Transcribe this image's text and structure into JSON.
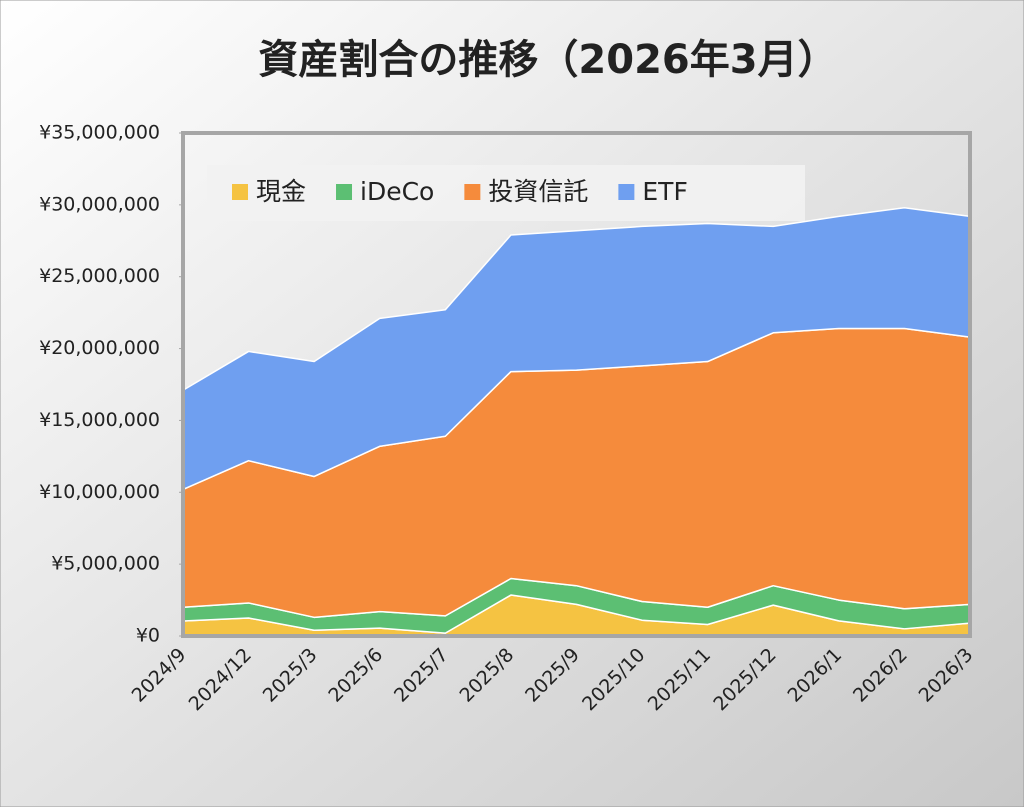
{
  "chart_data": {
    "type": "stacked-area",
    "title": "資産割合の推移（2026年3月）",
    "categories": [
      "2024/9",
      "2024/12",
      "2025/3",
      "2025/6",
      "2025/7",
      "2025/8",
      "2025/9",
      "2025/10",
      "2025/11",
      "2025/12",
      "2026/1",
      "2026/2",
      "2026/3"
    ],
    "series": [
      {
        "name": "現金",
        "color": "#f5c342",
        "values": [
          1040000,
          1250000,
          400000,
          550000,
          200000,
          2850000,
          2200000,
          1100000,
          800000,
          2150000,
          1050000,
          500000,
          900000
        ]
      },
      {
        "name": "iDeCo",
        "color": "#5cbf73",
        "values": [
          960000,
          1050000,
          900000,
          1150000,
          1200000,
          1150000,
          1300000,
          1300000,
          1200000,
          1350000,
          1450000,
          1400000,
          1300000
        ]
      },
      {
        "name": "投資信託",
        "color": "#f58b3c",
        "values": [
          8200000,
          9900000,
          9800000,
          11500000,
          12500000,
          14400000,
          15000000,
          16400000,
          17100000,
          17600000,
          18900000,
          19500000,
          18600000
        ]
      },
      {
        "name": "ETF",
        "color": "#6f9ff0",
        "values": [
          6900000,
          7600000,
          8000000,
          8900000,
          8800000,
          9500000,
          9700000,
          9700000,
          9600000,
          7400000,
          7800000,
          8400000,
          8400000
        ]
      }
    ],
    "ylim": [
      0,
      35000000
    ],
    "yticks": [
      {
        "value": 0,
        "label": "¥0"
      },
      {
        "value": 5000000,
        "label": "¥5,000,000"
      },
      {
        "value": 10000000,
        "label": "¥10,000,000"
      },
      {
        "value": 15000000,
        "label": "¥15,000,000"
      },
      {
        "value": 20000000,
        "label": "¥20,000,000"
      },
      {
        "value": 25000000,
        "label": "¥25,000,000"
      },
      {
        "value": 30000000,
        "label": "¥30,000,000"
      },
      {
        "value": 35000000,
        "label": "¥35,000,000"
      }
    ]
  }
}
